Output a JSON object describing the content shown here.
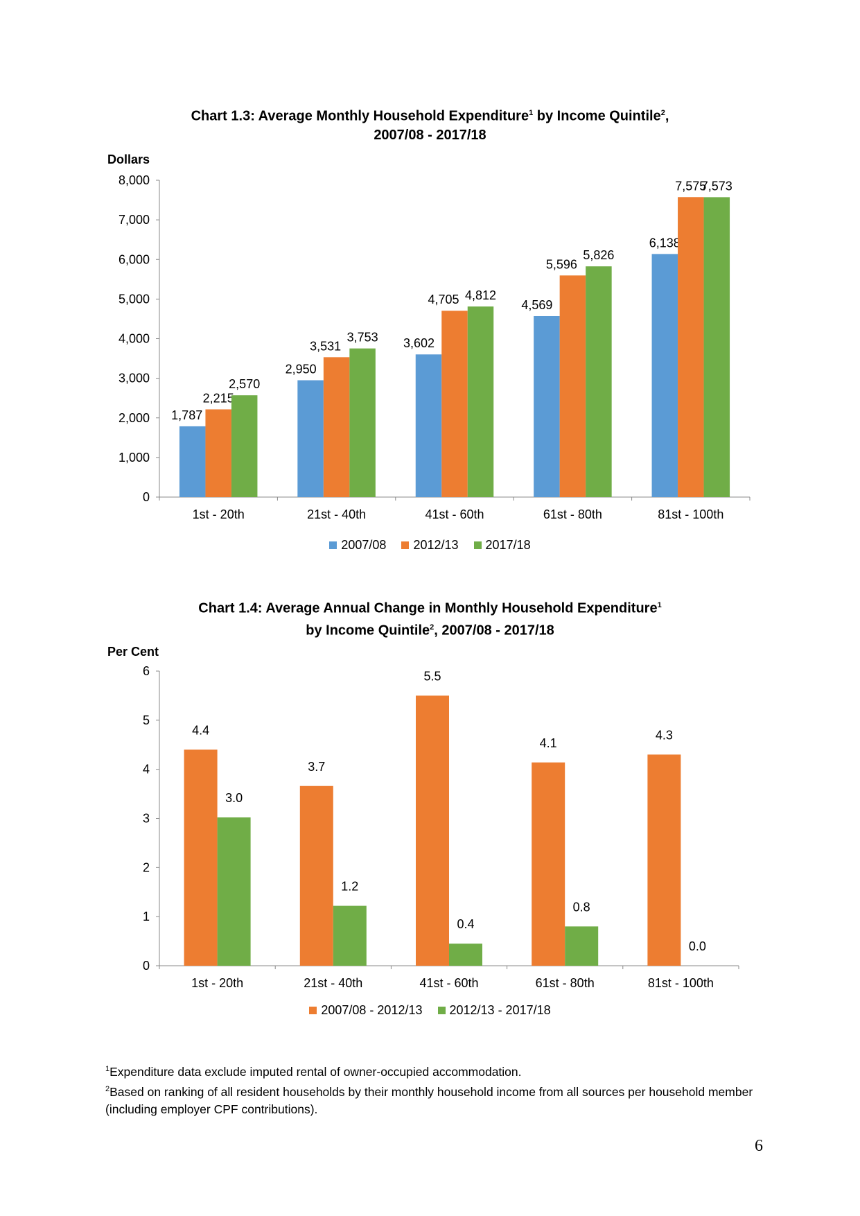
{
  "chart_data": [
    {
      "type": "bar",
      "title": "Chart 1.3: Average Monthly Household Expenditure",
      "title_sup1": "1",
      "title_mid": " by Income Quintile",
      "title_sup2": "2",
      "title_end": ",",
      "title_line2": "2007/08 - 2017/18",
      "ylabel": "Dollars",
      "ylim": [
        0,
        8000
      ],
      "yticks": [
        0,
        1000,
        2000,
        3000,
        4000,
        5000,
        6000,
        7000,
        8000
      ],
      "ytick_labels": [
        "0",
        "1,000",
        "2,000",
        "3,000",
        "4,000",
        "5,000",
        "6,000",
        "7,000",
        "8,000"
      ],
      "categories": [
        "1st - 20th",
        "21st - 40th",
        "41st - 60th",
        "61st - 80th",
        "81st - 100th"
      ],
      "series": [
        {
          "name": "2007/08",
          "color": "#5B9BD5",
          "values": [
            1787,
            2950,
            3602,
            4569,
            6138
          ],
          "labels": [
            "1,787",
            "2,950",
            "3,602",
            "4,569",
            "6,138"
          ]
        },
        {
          "name": "2012/13",
          "color": "#ED7D31",
          "values": [
            2215,
            3531,
            4705,
            5596,
            7575
          ],
          "labels": [
            "2,215",
            "3,531",
            "4,705",
            "5,596",
            "7,575"
          ]
        },
        {
          "name": "2017/18",
          "color": "#70AD47",
          "values": [
            2570,
            3753,
            4812,
            5826,
            7573
          ],
          "labels": [
            "2,570",
            "3,753",
            "4,812",
            "5,826",
            "7,573"
          ]
        }
      ],
      "legend": "bottom-center"
    },
    {
      "type": "bar",
      "title": "Chart 1.4: Average Annual Change in Monthly Household Expenditure",
      "title_sup1": "1",
      "title_line2_a": "by Income Quintile",
      "title_sup2": "2",
      "title_line2_b": ", 2007/08 - 2017/18",
      "ylabel": "Per Cent",
      "ylim": [
        0,
        6
      ],
      "yticks": [
        0,
        1,
        2,
        3,
        4,
        5,
        6
      ],
      "ytick_labels": [
        "0",
        "1",
        "2",
        "3",
        "4",
        "5",
        "6"
      ],
      "categories": [
        "1st - 20th",
        "21st - 40th",
        "41st - 60th",
        "61st - 80th",
        "81st - 100th"
      ],
      "series": [
        {
          "name": "2007/08 - 2012/13",
          "color": "#ED7D31",
          "values": [
            4.4,
            3.66,
            5.5,
            4.14,
            4.3
          ],
          "labels": [
            "4.4",
            "3.7",
            "5.5",
            "4.1",
            "4.3"
          ]
        },
        {
          "name": "2012/13 - 2017/18",
          "color": "#70AD47",
          "values": [
            3.02,
            1.22,
            0.45,
            0.8,
            0.0
          ],
          "labels": [
            "3.0",
            "1.2",
            "0.4",
            "0.8",
            "0.0"
          ]
        }
      ],
      "legend": "bottom-center"
    }
  ],
  "footnotes": {
    "note1_sup": "1",
    "note1": "Expenditure data exclude imputed rental of owner-occupied accommodation.",
    "note2_sup": "2",
    "note2": "Based on ranking of all resident households by their monthly household income from all sources per household member (including employer CPF contributions)."
  },
  "page_number": "6"
}
